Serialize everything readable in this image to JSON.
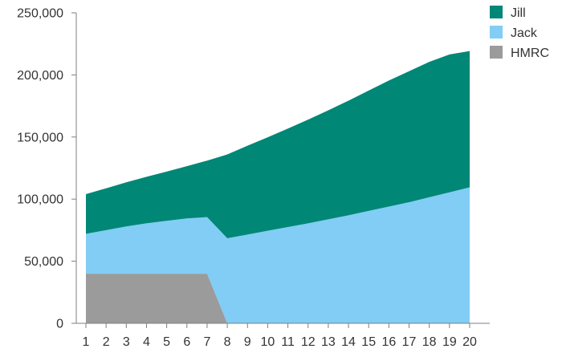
{
  "chart_data": {
    "type": "area",
    "stacked": true,
    "x": [
      1,
      2,
      3,
      4,
      5,
      6,
      7,
      8,
      9,
      10,
      11,
      12,
      13,
      14,
      15,
      16,
      17,
      18,
      19,
      20
    ],
    "series": [
      {
        "name": "HMRC",
        "color": "#9b9b9b",
        "values": [
          40000,
          40000,
          40000,
          40000,
          40000,
          40000,
          40000,
          0,
          0,
          0,
          0,
          0,
          0,
          0,
          0,
          0,
          0,
          0,
          0,
          0
        ]
      },
      {
        "name": "Jack",
        "color": "#81cdf5",
        "values": [
          32000,
          35000,
          38000,
          40500,
          42500,
          44500,
          45500,
          68500,
          71500,
          74500,
          77500,
          80500,
          83700,
          87000,
          90500,
          94000,
          97500,
          101500,
          105500,
          109500
        ]
      },
      {
        "name": "Jill",
        "color": "#008776",
        "values": [
          32000,
          33700,
          35500,
          37500,
          39700,
          42000,
          45500,
          67500,
          71500,
          75300,
          79300,
          83500,
          87800,
          92300,
          96900,
          101500,
          105500,
          109000,
          111000,
          109700
        ]
      }
    ],
    "ylim": [
      0,
      250000
    ],
    "yticks": [
      "0",
      "50,000",
      "100,000",
      "150,000",
      "200,000",
      "250,000"
    ],
    "xticks": [
      "1",
      "2",
      "3",
      "4",
      "5",
      "6",
      "7",
      "8",
      "9",
      "10",
      "11",
      "12",
      "13",
      "14",
      "15",
      "16",
      "17",
      "18",
      "19",
      "20"
    ],
    "legend": {
      "placement": "top-right",
      "order": [
        "Jill",
        "Jack",
        "HMRC"
      ]
    },
    "grid": false,
    "title": "",
    "xlabel": "",
    "ylabel": ""
  }
}
